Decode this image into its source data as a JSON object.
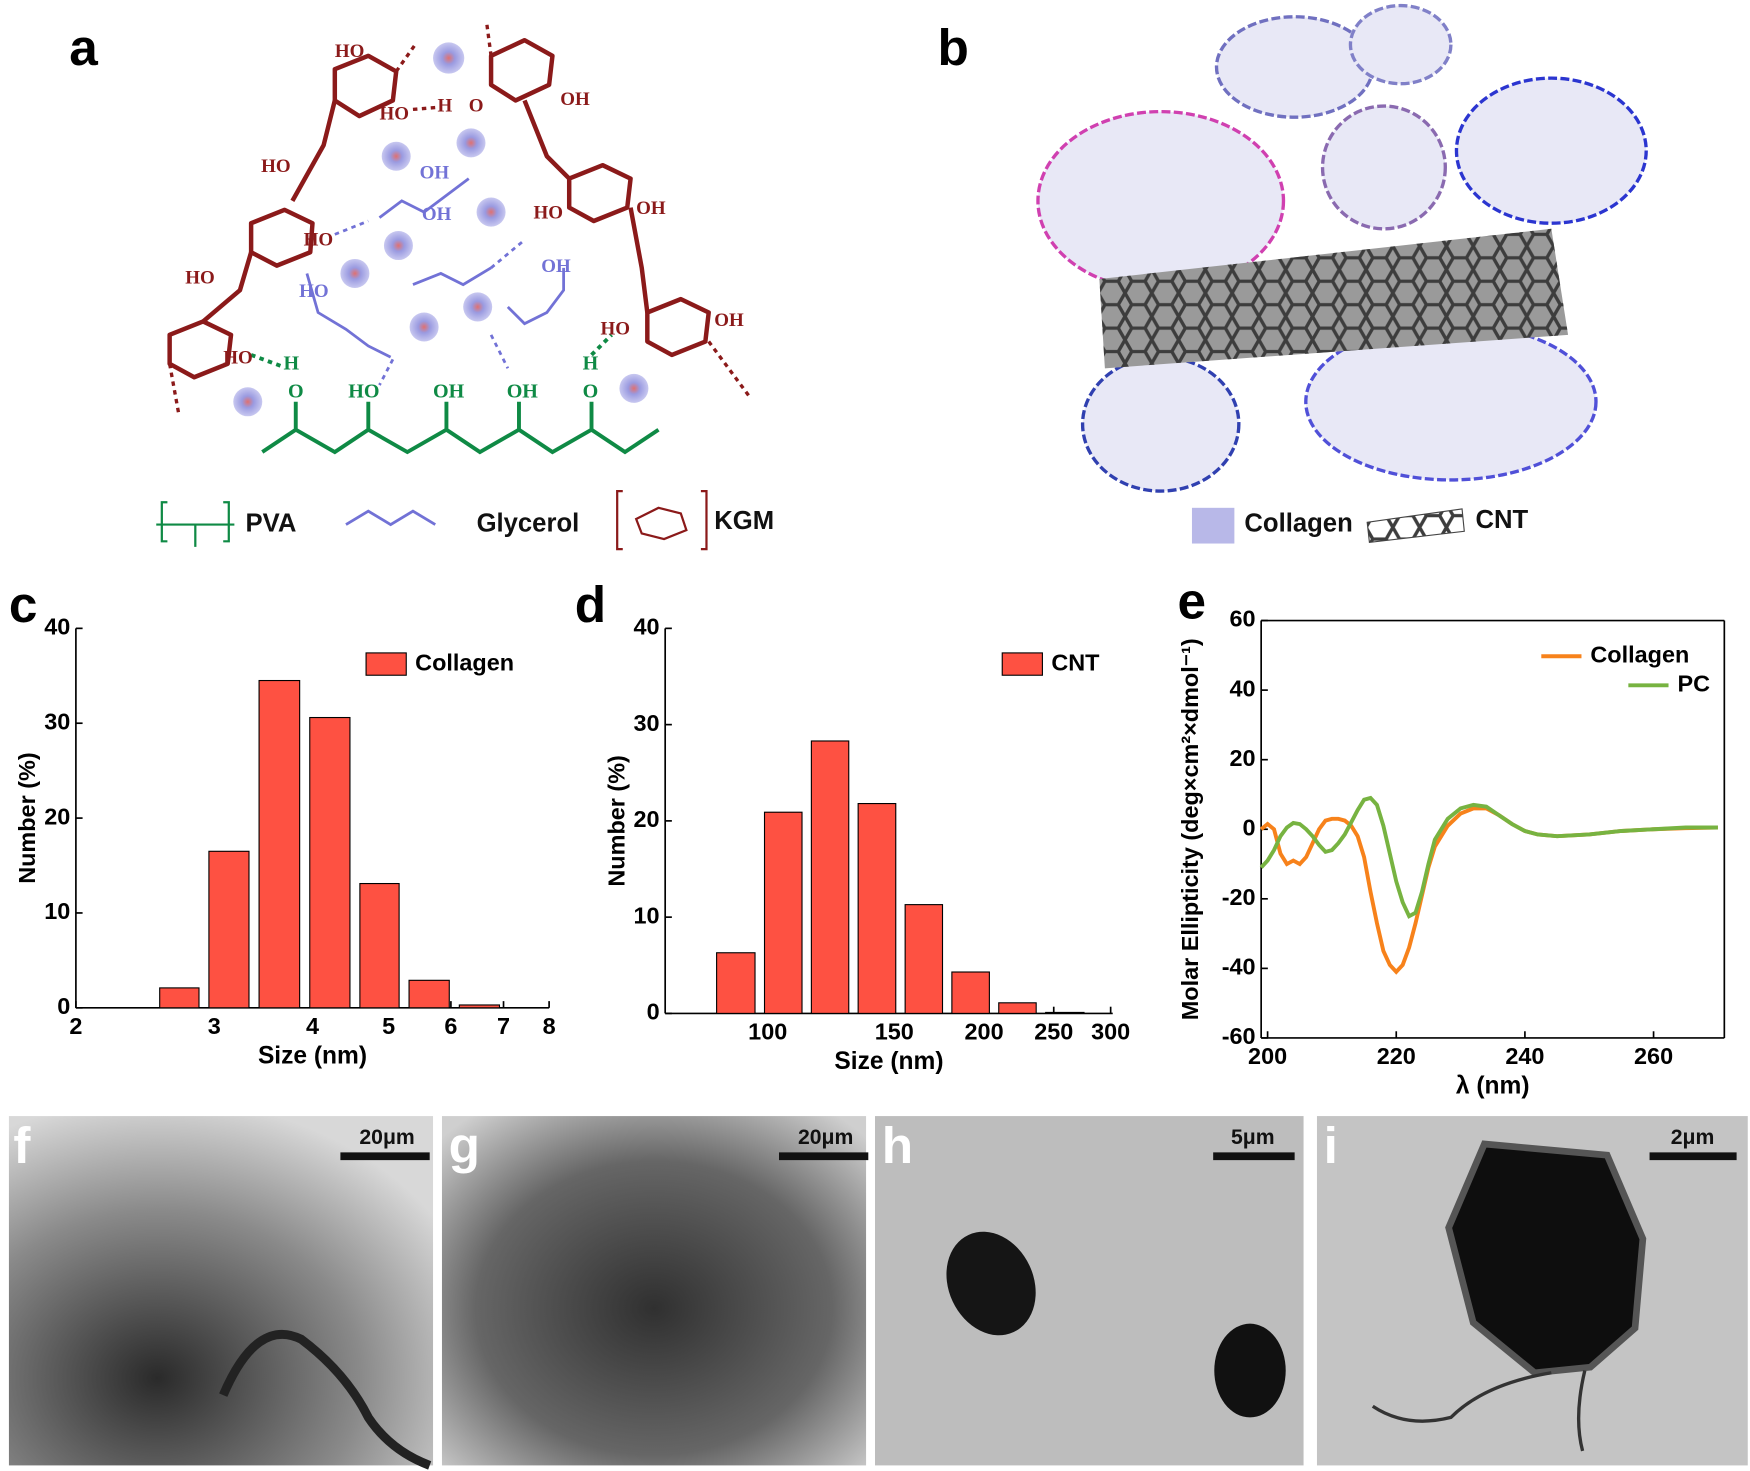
{
  "panels": {
    "labels": [
      "a",
      "b",
      "c",
      "d",
      "e",
      "f",
      "g",
      "h",
      "i"
    ]
  },
  "panel_a": {
    "labels": [
      "HO",
      "HO",
      "H",
      "O",
      "OH",
      "HO",
      "OH",
      "HO",
      "HO",
      "HO",
      "HO",
      "HO",
      "OH",
      "OH",
      "OH",
      "HO",
      "OH",
      "H",
      "O",
      "HO",
      "OH",
      "OH",
      "H",
      "O"
    ],
    "legend": [
      "PVA",
      "Glycerol",
      "KGM"
    ]
  },
  "panel_b": {
    "legend": [
      "Collagen",
      "CNT"
    ]
  },
  "micrographs": {
    "scale_bars": [
      "20μm",
      "20μm",
      "5μm",
      "2μm"
    ]
  },
  "chart_data": [
    {
      "type": "histogram",
      "xlabel": "Size (nm)",
      "ylabel": "Number (%)",
      "xscale": "log",
      "bins": [
        2.52,
        2.91,
        3.37,
        3.91,
        4.53,
        5.23,
        6.06,
        7.02
      ],
      "series": [
        {
          "name": "Collagen",
          "color": "#fe5142",
          "values": [
            2.1,
            16.5,
            34.5,
            30.6,
            13.1,
            2.9,
            0.3
          ]
        }
      ],
      "xlim": [
        2,
        8
      ],
      "xticks": [
        2,
        3,
        4,
        5,
        6,
        7,
        8
      ],
      "ylim": [
        0,
        40
      ],
      "yticks": [
        0,
        10,
        20,
        30,
        40
      ],
      "legend": "upper right"
    },
    {
      "type": "histogram",
      "xlabel": "Size (nm)",
      "ylabel": "Number (%)",
      "xscale": "log",
      "bins": [
        83.6,
        97.5,
        113.3,
        131.6,
        153,
        177.7,
        206.5,
        239.9,
        279.7
      ],
      "series": [
        {
          "name": "CNT",
          "color": "#fe5142",
          "values": [
            6.3,
            20.9,
            28.3,
            21.8,
            11.3,
            4.3,
            1.1,
            0.1
          ]
        }
      ],
      "xlim": [
        72,
        302
      ],
      "xticks": [
        100,
        150,
        200,
        250,
        300
      ],
      "ylim": [
        0,
        40
      ],
      "yticks": [
        0,
        10,
        20,
        30,
        40
      ],
      "legend": "upper right"
    },
    {
      "type": "line",
      "xlabel": "λ (nm)",
      "ylabel": "Molar Ellipticity (deg×cm²×dmol⁻¹)",
      "x": [
        199,
        200,
        201,
        202,
        203,
        204,
        205,
        206,
        207,
        208,
        209,
        210,
        211,
        212,
        213,
        214,
        215,
        216,
        217,
        218,
        219,
        220,
        221,
        222,
        223,
        224,
        225,
        226,
        228,
        230,
        232,
        234,
        236,
        238,
        240,
        242,
        245,
        250,
        255,
        260,
        265,
        270
      ],
      "series": [
        {
          "name": "Collagen",
          "color": "#f7821b",
          "values": [
            0,
            1.5,
            0,
            -7,
            -10,
            -9,
            -10,
            -8,
            -4,
            0,
            2.5,
            3,
            3,
            2.5,
            1,
            -2,
            -8,
            -18,
            -27,
            -35,
            -39,
            -41,
            -39,
            -34,
            -27,
            -19,
            -11,
            -5,
            1,
            4.5,
            6,
            6,
            4,
            1.5,
            -0.5,
            -1.5,
            -2,
            -1.5,
            -0.5,
            0,
            0.3,
            0.5
          ]
        },
        {
          "name": "PC",
          "color": "#77b341",
          "values": [
            -11,
            -9,
            -6,
            -2,
            0.5,
            1.8,
            1.5,
            0,
            -2,
            -4.5,
            -6.5,
            -6,
            -4,
            -1.5,
            2,
            5.5,
            8.5,
            9,
            7,
            1,
            -7,
            -15,
            -21,
            -25,
            -24,
            -18,
            -10,
            -3,
            3,
            6,
            7,
            6.5,
            4,
            1.5,
            -0.5,
            -1.5,
            -2,
            -1.5,
            -0.5,
            0,
            0.5,
            0.5
          ]
        }
      ],
      "xlim": [
        199,
        271
      ],
      "xticks": [
        200,
        220,
        240,
        260
      ],
      "ylim": [
        -60,
        60
      ],
      "yticks": [
        -60,
        -40,
        -20,
        0,
        20,
        40,
        60
      ],
      "legend": "upper right"
    }
  ]
}
